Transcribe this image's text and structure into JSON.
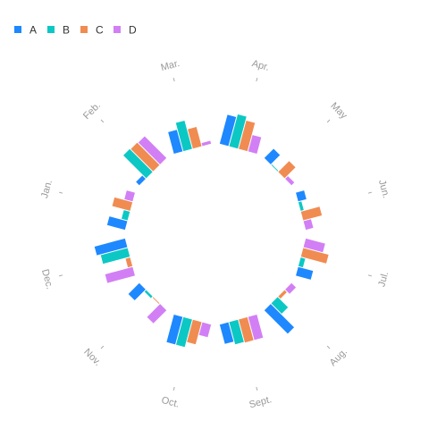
{
  "chart_data": {
    "type": "bar",
    "subtype": "radial-grouped-bar",
    "title": "",
    "legend_position": "top-left",
    "categories": [
      "Jan.",
      "Feb.",
      "Mar.",
      "Apr.",
      "May",
      "Jun.",
      "Jul.",
      "Aug.",
      "Sept.",
      "Oct.",
      "Nov.",
      "Dec."
    ],
    "series": [
      {
        "name": "A",
        "color": "#1E88FF",
        "values": [
          24,
          6,
          29,
          39,
          17,
          11,
          20,
          43,
          26,
          37,
          20,
          41
        ]
      },
      {
        "name": "B",
        "color": "#0CC8C4",
        "values": [
          8,
          42,
          38,
          43,
          1,
          4,
          6,
          19,
          30,
          37,
          3,
          36
        ]
      },
      {
        "name": "C",
        "color": "#F08C52",
        "values": [
          24,
          41,
          26,
          38,
          20,
          25,
          34,
          4,
          31,
          30,
          1,
          6
        ]
      },
      {
        "name": "D",
        "color": "#D27FF5",
        "values": [
          11,
          40,
          4,
          22,
          5,
          10,
          26,
          8,
          31,
          17,
          24,
          37
        ]
      }
    ],
    "grid": false
  }
}
